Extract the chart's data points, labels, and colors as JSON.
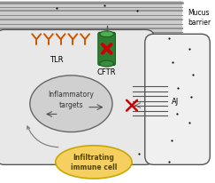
{
  "mucus_text": "Mucus\nbarrier",
  "tlr_label": "TLR",
  "cftr_label": "CFTR",
  "aj_label": "AJ",
  "inflammatory_label": "Inflammatory\ntargets",
  "immune_label": "Infiltrating\nimmune cell",
  "immune_color": "#f5d060",
  "immune_edge": "#c8a800",
  "tlr_color": "#cc5500",
  "cftr_body_color": "#2e7d32",
  "cftr_top_color": "#4caf50",
  "cftr_dark_color": "#1b5e20",
  "red_x_color": "#cc0000",
  "dot_color": "#111111",
  "cell1_face": "#e8e8e8",
  "cell1_edge": "#555555",
  "cell2_face": "#f0f0f0",
  "cell2_edge": "#555555",
  "mucus_face": "#cccccc",
  "mucus_line_color": "#888888",
  "infl_face": "#d0d0d0",
  "infl_edge": "#666666",
  "junction_color": "#555555",
  "arrow_color": "#777777"
}
